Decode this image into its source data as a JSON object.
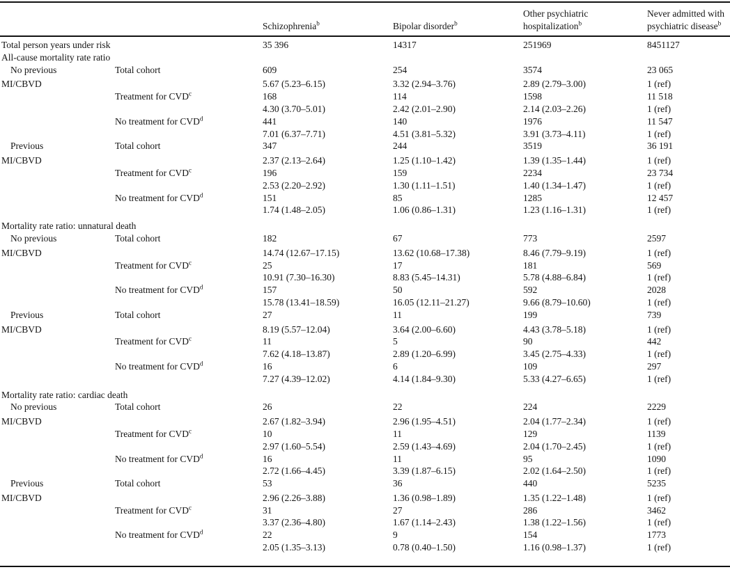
{
  "table": {
    "columns": [
      {
        "label": "Schizophrenia",
        "sup": "b"
      },
      {
        "label": "Bipolar disorder",
        "sup": "b"
      },
      {
        "label": "Other psychiatric",
        "label2": "hospitalization",
        "sup": "b"
      },
      {
        "label": "Never admitted with",
        "label2": "psychiatric disease",
        "sup": "b"
      }
    ],
    "rows": [
      {
        "c1": "Total person years under risk",
        "v1": "35 396",
        "v2": "14317",
        "v3": "251969",
        "v4": "8451127"
      },
      {
        "c1": "All-cause mortality rate ratio"
      },
      {
        "c1": "No previous",
        "c2": "Total cohort",
        "v1": "609",
        "v2": "254",
        "v3": "3574",
        "v4": "23 065",
        "cls": "indent"
      },
      {
        "c1": "MI/CBVD",
        "v1": "5.67 (5.23–6.15)",
        "v2": "3.32 (2.94–3.76)",
        "v3": "2.89 (2.79–3.00)",
        "v4": "1 (ref)",
        "cls": "gap-sm"
      },
      {
        "c2": "Treatment for CVD",
        "c2sup": "c",
        "v1": "168",
        "v2": "114",
        "v3": "1598",
        "v4": "11 518"
      },
      {
        "v1": "4.30 (3.70–5.01)",
        "v2": "2.42 (2.01–2.90)",
        "v3": "2.14 (2.03–2.26)",
        "v4": "1 (ref)"
      },
      {
        "c2": "No treatment for CVD",
        "c2sup": "d",
        "v1": "441",
        "v2": "140",
        "v3": "1976",
        "v4": "11 547"
      },
      {
        "v1": "7.01 (6.37–7.71)",
        "v2": "4.51 (3.81–5.32)",
        "v3": "3.91 (3.73–4.11)",
        "v4": "1 (ref)"
      },
      {
        "c1": "Previous",
        "c2": "Total cohort",
        "v1": "347",
        "v2": "244",
        "v3": "3519",
        "v4": "36 191",
        "cls": "indent"
      },
      {
        "c1": "MI/CBVD",
        "v1": "2.37 (2.13–2.64)",
        "v2": "1.25 (1.10–1.42)",
        "v3": "1.39 (1.35–1.44)",
        "v4": "1 (ref)",
        "cls": "gap-sm"
      },
      {
        "c2": "Treatment for CVD",
        "c2sup": "c",
        "v1": "196",
        "v2": "159",
        "v3": "2234",
        "v4": "23 734"
      },
      {
        "v1": "2.53 (2.20–2.92)",
        "v2": "1.30 (1.11–1.51)",
        "v3": "1.40 (1.34–1.47)",
        "v4": "1 (ref)"
      },
      {
        "c2": "No treatment for CVD",
        "c2sup": "d",
        "v1": "151",
        "v2": "85",
        "v3": "1285",
        "v4": "12 457"
      },
      {
        "v1": "1.74 (1.48–2.05)",
        "v2": "1.06 (0.86–1.31)",
        "v3": "1.23 (1.16–1.31)",
        "v4": "1 (ref)"
      },
      {
        "c1": "Mortality rate ratio: unnatural death",
        "cls": "gap-md"
      },
      {
        "c1": "No previous",
        "c2": "Total cohort",
        "v1": "182",
        "v2": "67",
        "v3": "773",
        "v4": "2597",
        "cls": "indent"
      },
      {
        "c1": "MI/CBVD",
        "v1": "14.74 (12.67–17.15)",
        "v2": "13.62 (10.68–17.38)",
        "v3": "8.46 (7.79–9.19)",
        "v4": "1 (ref)",
        "cls": "gap-sm"
      },
      {
        "c2": "Treatment for CVD",
        "c2sup": "c",
        "v1": "25",
        "v2": "17",
        "v3": "181",
        "v4": "569"
      },
      {
        "v1": "10.91 (7.30–16.30)",
        "v2": "8.83 (5.45–14.31)",
        "v3": "5.78 (4.88–6.84)",
        "v4": "1 (ref)"
      },
      {
        "c2": "No treatment for CVD",
        "c2sup": "d",
        "v1": "157",
        "v2": "50",
        "v3": "592",
        "v4": "2028"
      },
      {
        "v1": "15.78 (13.41–18.59)",
        "v2": "16.05 (12.11–21.27)",
        "v3": "9.66 (8.79–10.60)",
        "v4": "1 (ref)"
      },
      {
        "c1": "Previous",
        "c2": "Total cohort",
        "v1": "27",
        "v2": "11",
        "v3": "199",
        "v4": "739",
        "cls": "indent"
      },
      {
        "c1": "MI/CBVD",
        "v1": "8.19 (5.57–12.04)",
        "v2": "3.64 (2.00–6.60)",
        "v3": "4.43 (3.78–5.18)",
        "v4": "1 (ref)",
        "cls": "gap-sm"
      },
      {
        "c2": "Treatment for CVD",
        "c2sup": "c",
        "v1": "11",
        "v2": "5",
        "v3": "90",
        "v4": "442"
      },
      {
        "v1": "7.62 (4.18–13.87)",
        "v2": "2.89 (1.20–6.99)",
        "v3": "3.45 (2.75–4.33)",
        "v4": "1 (ref)"
      },
      {
        "c2": "No treatment for CVD",
        "c2sup": "d",
        "v1": "16",
        "v2": "6",
        "v3": "109",
        "v4": "297"
      },
      {
        "v1": "7.27 (4.39–12.02)",
        "v2": "4.14 (1.84–9.30)",
        "v3": "5.33 (4.27–6.65)",
        "v4": "1 (ref)"
      },
      {
        "c1": "Mortality rate ratio: cardiac death",
        "cls": "gap-md"
      },
      {
        "c1": "No previous",
        "c2": "Total cohort",
        "v1": "26",
        "v2": "22",
        "v3": "224",
        "v4": "2229",
        "cls": "indent"
      },
      {
        "c1": "MI/CBVD",
        "v1": "2.67 (1.82–3.94)",
        "v2": "2.96 (1.95–4.51)",
        "v3": "2.04 (1.77–2.34)",
        "v4": "1 (ref)",
        "cls": "gap-sm"
      },
      {
        "c2": "Treatment for CVD",
        "c2sup": "c",
        "v1": "10",
        "v2": "11",
        "v3": "129",
        "v4": "1139"
      },
      {
        "v1": "2.97 (1.60–5.54)",
        "v2": "2.59 (1.43–4.69)",
        "v3": "2.04 (1.70–2.45)",
        "v4": "1 (ref)"
      },
      {
        "c2": "No treatment for CVD",
        "c2sup": "d",
        "v1": "16",
        "v2": "11",
        "v3": "95",
        "v4": "1090"
      },
      {
        "v1": "2.72 (1.66–4.45)",
        "v2": "3.39 (1.87–6.15)",
        "v3": "2.02 (1.64–2.50)",
        "v4": "1 (ref)"
      },
      {
        "c1": "Previous",
        "c2": "Total cohort",
        "v1": "53",
        "v2": "36",
        "v3": "440",
        "v4": "5235",
        "cls": "indent"
      },
      {
        "c1": "MI/CBVD",
        "v1": "2.96 (2.26–3.88)",
        "v2": "1.36 (0.98–1.89)",
        "v3": "1.35 (1.22–1.48)",
        "v4": "1 (ref)",
        "cls": "gap-sm"
      },
      {
        "c2": "Treatment for CVD",
        "c2sup": "c",
        "v1": "31",
        "v2": "27",
        "v3": "286",
        "v4": "3462"
      },
      {
        "v1": "3.37 (2.36–4.80)",
        "v2": "1.67 (1.14–2.43)",
        "v3": "1.38 (1.22–1.56)",
        "v4": "1 (ref)"
      },
      {
        "c2": "No treatment for CVD",
        "c2sup": "d",
        "v1": "22",
        "v2": "9",
        "v3": "154",
        "v4": "1773"
      },
      {
        "v1": "2.05 (1.35–3.13)",
        "v2": "0.78 (0.40–1.50)",
        "v3": "1.16 (0.98–1.37)",
        "v4": "1 (ref)"
      }
    ]
  }
}
